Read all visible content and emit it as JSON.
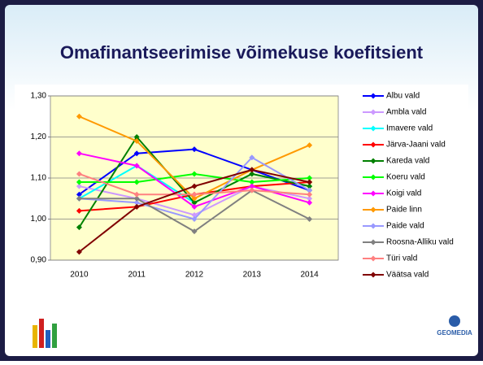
{
  "chart_data": {
    "type": "line",
    "title": "Omafinantseerimise võimekuse koefitsient",
    "categories": [
      "2010",
      "2011",
      "2012",
      "2013",
      "2014"
    ],
    "series": [
      {
        "name": "Albu vald",
        "color": "#0000ff",
        "values": [
          1.06,
          1.16,
          1.17,
          1.12,
          1.07
        ]
      },
      {
        "name": "Ambla vald",
        "color": "#cc99ff",
        "values": [
          1.08,
          1.05,
          1.01,
          1.08,
          1.05
        ]
      },
      {
        "name": "Imavere vald",
        "color": "#00ffff",
        "values": [
          1.05,
          1.13,
          1.04,
          1.11,
          1.08
        ]
      },
      {
        "name": "Järva-Jaani vald",
        "color": "#ff0000",
        "values": [
          1.02,
          1.03,
          1.06,
          1.08,
          1.09
        ]
      },
      {
        "name": "Kareda vald",
        "color": "#008000",
        "values": [
          0.98,
          1.2,
          1.04,
          1.11,
          1.08
        ]
      },
      {
        "name": "Koeru vald",
        "color": "#00ff00",
        "values": [
          1.09,
          1.09,
          1.11,
          1.09,
          1.1
        ]
      },
      {
        "name": "Koigi vald",
        "color": "#ff00ff",
        "values": [
          1.16,
          1.13,
          1.03,
          1.08,
          1.04
        ]
      },
      {
        "name": "Paide linn",
        "color": "#ff9900",
        "values": [
          1.25,
          1.19,
          1.05,
          1.12,
          1.18
        ]
      },
      {
        "name": "Paide vald",
        "color": "#9999ff",
        "values": [
          1.05,
          1.04,
          1.0,
          1.15,
          1.07
        ]
      },
      {
        "name": "Roosna-Alliku vald",
        "color": "#808080",
        "values": [
          1.05,
          1.05,
          0.97,
          1.07,
          1.0
        ]
      },
      {
        "name": "Türi vald",
        "color": "#ff8080",
        "values": [
          1.11,
          1.06,
          1.06,
          1.07,
          1.06
        ]
      },
      {
        "name": "Väätsa vald",
        "color": "#800000",
        "values": [
          0.92,
          1.03,
          1.08,
          1.12,
          1.09
        ]
      }
    ],
    "ylim": [
      0.9,
      1.3
    ],
    "yticks": [
      {
        "value": 0.9,
        "label": "0,90"
      },
      {
        "value": 1.0,
        "label": "1,00"
      },
      {
        "value": 1.1,
        "label": "1,10"
      },
      {
        "value": 1.2,
        "label": "1,20"
      },
      {
        "value": 1.3,
        "label": "1,30"
      }
    ],
    "grid": true,
    "legend": "right"
  },
  "logo": "GEOMEDIA"
}
